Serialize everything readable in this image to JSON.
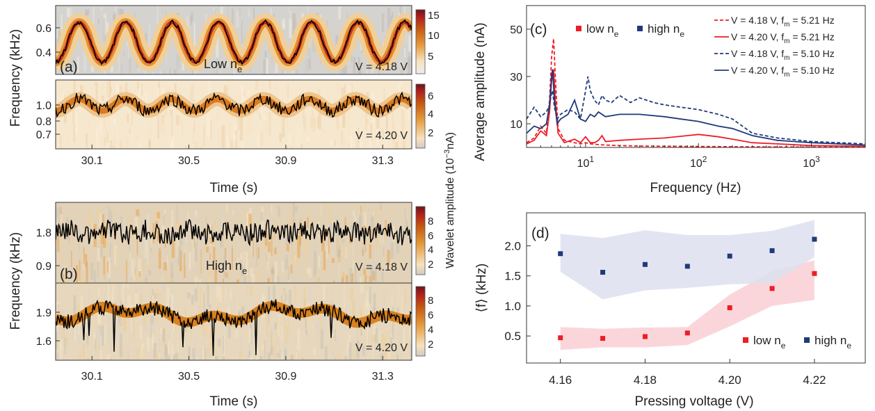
{
  "chart_data": [
    {
      "panel": "(a)",
      "type": "heatmap",
      "time_ticks": [
        30.1,
        30.5,
        30.9,
        31.3
      ],
      "xlabel": "Time (s)",
      "top": {
        "ylabel": "Frequency (kHz)",
        "yticks": [
          "0.6",
          "0.4"
        ],
        "ylim": [
          0.28,
          0.73
        ],
        "label": "Low n",
        "label_sub": "e",
        "annotation": "V = 4.18 V",
        "colorbar_ticks": [
          "15",
          "10",
          "5"
        ],
        "cmax": 16,
        "ridge_center": 0.48,
        "ridge_amp": 0.14,
        "ridge_period_s": 0.192
      },
      "bottom": {
        "yticks": [
          "1.0",
          "0.8",
          "0.7"
        ],
        "ylim": [
          0.65,
          1.12
        ],
        "annotation": "V = 4.20 V",
        "colorbar_ticks": [
          "6",
          "4",
          "2"
        ],
        "cmax": 7,
        "ridge_center": 0.95
      },
      "colorbar_label": "Wavelet amplitude (10",
      "colorbar_label_sup": "−3",
      "colorbar_label_end": "nA)"
    },
    {
      "panel": "(b)",
      "type": "heatmap",
      "time_ticks": [
        30.1,
        30.5,
        30.9,
        31.3
      ],
      "xlabel": "Time (s)",
      "top": {
        "ylabel": "Frequency (kHz)",
        "yticks": [
          "1.8",
          "0.9"
        ],
        "label": "High n",
        "label_sub": "e",
        "annotation": "V = 4.18 V",
        "colorbar_ticks": [
          "8",
          "6",
          "4",
          "2"
        ],
        "cmax": 9
      },
      "bottom": {
        "yticks": [
          "1.9",
          "1.6"
        ],
        "annotation": "V = 4.20 V",
        "colorbar_ticks": [
          "8",
          "6",
          "4",
          "2"
        ],
        "cmax": 9
      }
    },
    {
      "panel": "(c)",
      "type": "line",
      "xscale": "log",
      "xlim": [
        3,
        3000
      ],
      "ylim": [
        0,
        60
      ],
      "xlabel": "Frequency (Hz)",
      "ylabel": "Average amplitude (nA)",
      "xtick_exponents": [
        1,
        2,
        3
      ],
      "yticks": [
        10,
        30,
        50
      ],
      "legend_top": [
        {
          "label": "low n",
          "sub": "e",
          "color": "#ee1c25"
        },
        {
          "label": "high n",
          "sub": "e",
          "color": "#1f3a7a"
        }
      ],
      "series": [
        {
          "name": "V = 4.18 V, f",
          "sub": "m",
          "tail": " = 5.21 Hz",
          "color": "#ee1c25",
          "dash": true,
          "x": [
            3,
            3.5,
            4,
            4.5,
            4.8,
            5.0,
            5.21,
            5.4,
            5.7,
            6.5,
            8,
            9,
            10,
            11,
            13,
            15,
            20,
            30,
            50,
            100,
            200,
            500,
            1000,
            3000
          ],
          "y": [
            2,
            4,
            9,
            6,
            20,
            38,
            46,
            30,
            8,
            3,
            2,
            1.5,
            2,
            1.5,
            1.2,
            1,
            0.8,
            0.6,
            0.5,
            0.4,
            0.3,
            0.2,
            0.15,
            0.1
          ]
        },
        {
          "name": "V = 4.20 V, f",
          "sub": "m",
          "tail": " = 5.21 Hz",
          "color": "#ee1c25",
          "dash": false,
          "x": [
            3,
            3.5,
            4,
            4.5,
            4.8,
            5.0,
            5.21,
            5.4,
            5.7,
            6.5,
            8,
            9,
            10,
            11,
            12,
            13,
            14,
            15,
            20,
            30,
            50,
            80,
            100,
            150,
            200,
            300,
            500,
            1000,
            3000
          ],
          "y": [
            1.5,
            3,
            7,
            5,
            15,
            28,
            33,
            20,
            6,
            2,
            3.5,
            2,
            4.5,
            2,
            2,
            3,
            5,
            2.5,
            3,
            3.5,
            4,
            5,
            5.5,
            4.5,
            3.5,
            2,
            1.5,
            0.8,
            0.5
          ]
        },
        {
          "name": "V = 4.18 V, f",
          "sub": "m",
          "tail": " = 5.10 Hz",
          "color": "#1f3a7a",
          "dash": true,
          "x": [
            3,
            3.5,
            4,
            4.5,
            4.8,
            5.0,
            5.1,
            5.3,
            5.6,
            6,
            7,
            8,
            9,
            10,
            10.5,
            11,
            12,
            13,
            14,
            15,
            17,
            20,
            25,
            30,
            40,
            50,
            70,
            100,
            150,
            200,
            300,
            500,
            1000,
            3000
          ],
          "y": [
            12,
            17,
            13,
            15,
            18,
            23,
            24,
            17,
            12,
            14,
            16,
            15,
            12,
            24,
            30,
            24,
            20,
            18,
            22,
            20,
            19,
            22,
            19,
            21,
            19,
            18,
            17,
            16,
            14,
            12,
            6,
            4,
            2.5,
            1.5
          ]
        },
        {
          "name": "V = 4.20 V, f",
          "sub": "m",
          "tail": " = 5.10 Hz",
          "color": "#1f3a7a",
          "dash": false,
          "x": [
            3,
            3.5,
            4,
            4.5,
            4.8,
            5.0,
            5.1,
            5.3,
            5.6,
            6,
            7,
            8,
            9,
            10,
            11,
            12,
            13,
            15,
            20,
            30,
            50,
            70,
            100,
            150,
            200,
            300,
            500,
            1000,
            3000
          ],
          "y": [
            6,
            9,
            8,
            10,
            18,
            30,
            33,
            20,
            10,
            12,
            14,
            20,
            12,
            11,
            14,
            13,
            15,
            13,
            14,
            14,
            13,
            12,
            11,
            9,
            8,
            5,
            3,
            2,
            1
          ]
        }
      ]
    },
    {
      "panel": "(d)",
      "type": "scatter",
      "x": [
        4.16,
        4.17,
        4.18,
        4.19,
        4.2,
        4.21,
        4.22
      ],
      "xlim": [
        4.152,
        4.232
      ],
      "ylim": [
        0.05,
        2.55
      ],
      "xticks": [
        "4.16",
        "4.18",
        "4.20",
        "4.22"
      ],
      "yticks": [
        "0.5",
        "1.0",
        "1.5",
        "2.0"
      ],
      "ytick_values": [
        0.5,
        1.0,
        1.5,
        2.0
      ],
      "xtick_values": [
        4.16,
        4.18,
        4.2,
        4.22
      ],
      "xlabel": "Pressing voltage (V)",
      "ylabel": "⟨f⟩ (kHz)",
      "series": [
        {
          "name": "low n",
          "sub": "e",
          "color": "#ee1c25",
          "band": "#f9cfd3",
          "values": [
            0.47,
            0.46,
            0.49,
            0.55,
            0.97,
            1.29,
            1.54
          ],
          "lower": [
            0.27,
            0.31,
            0.31,
            0.35,
            0.66,
            1.0,
            1.1
          ],
          "upper": [
            0.65,
            0.62,
            0.64,
            0.65,
            1.19,
            1.58,
            1.76
          ]
        },
        {
          "name": "high n",
          "sub": "e",
          "color": "#1f3a7a",
          "band": "#dde1ef",
          "values": [
            1.87,
            1.56,
            1.69,
            1.66,
            1.83,
            1.92,
            2.11
          ],
          "lower": [
            1.57,
            1.11,
            1.26,
            1.3,
            1.36,
            1.38,
            1.81
          ],
          "upper": [
            2.2,
            2.13,
            2.26,
            2.18,
            2.18,
            2.25,
            2.43
          ]
        }
      ]
    }
  ]
}
